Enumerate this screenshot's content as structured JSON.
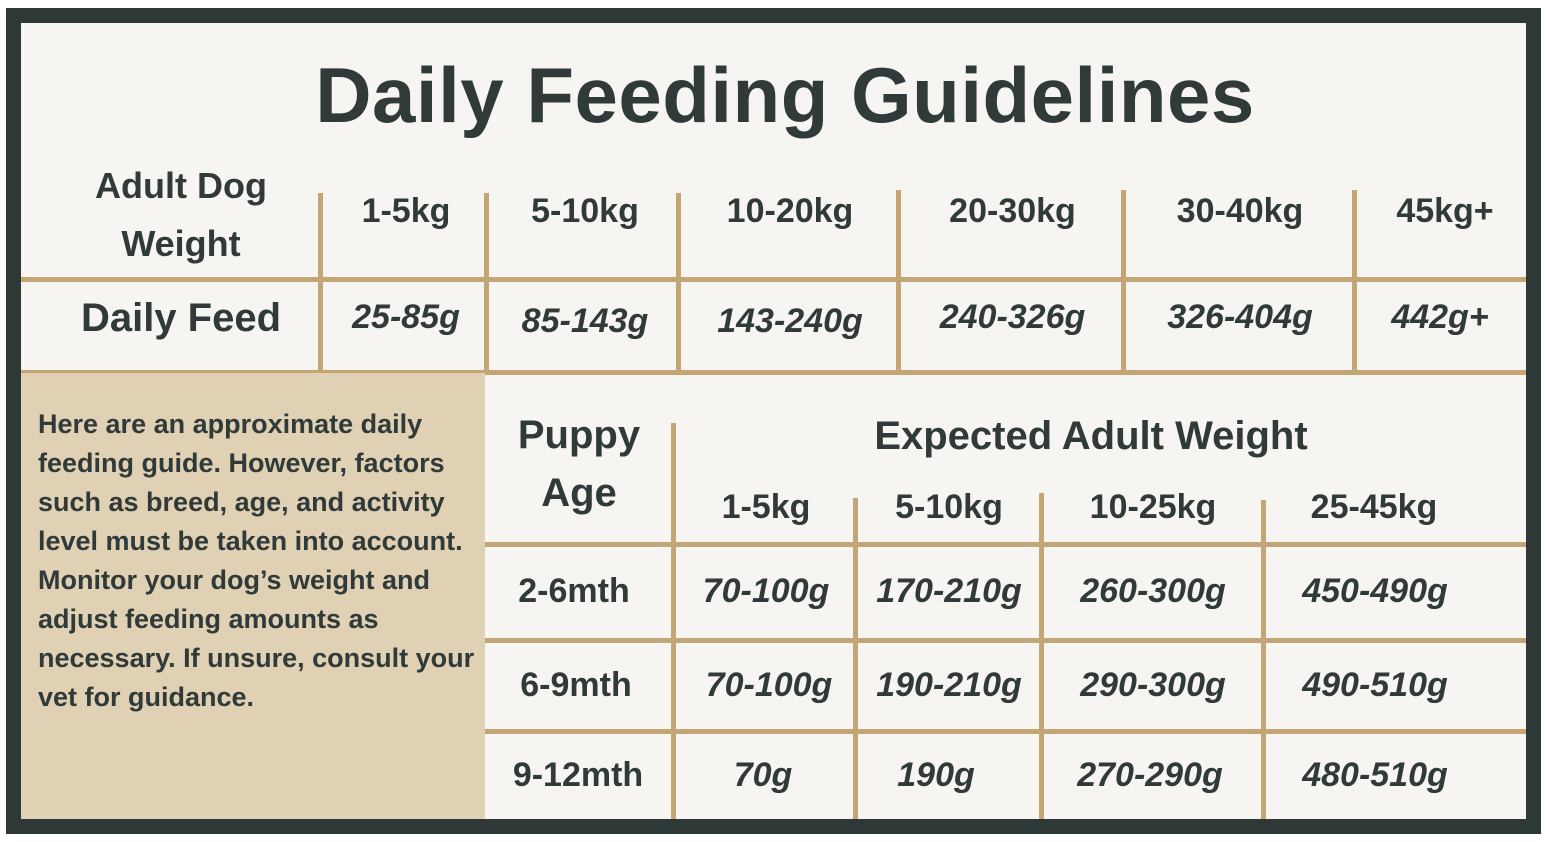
{
  "title": "Daily Feeding Guidelines",
  "adult": {
    "weight_label_line1": "Adult Dog",
    "weight_label_line2": "Weight",
    "feed_label": "Daily Feed",
    "weights": [
      "1-5kg",
      "5-10kg",
      "10-20kg",
      "20-30kg",
      "30-40kg",
      "45kg+"
    ],
    "feeds": [
      "25-85g",
      "85-143g",
      "143-240g",
      "240-326g",
      "326-404g",
      "442g+"
    ]
  },
  "note": "Here are an approximate daily feeding guide. However, factors such as breed, age, and activity level must be taken into account. Monitor your dog’s weight and adjust feeding amounts as necessary. If unsure, consult your vet for guidance.",
  "puppy": {
    "age_label_line1": "Puppy",
    "age_label_line2": "Age",
    "expected_label": "Expected Adult Weight",
    "weights": [
      "1-5kg",
      "5-10kg",
      "10-25kg",
      "25-45kg"
    ],
    "rows": [
      {
        "age": "2-6mth",
        "values": [
          "70-100g",
          "170-210g",
          "260-300g",
          "450-490g"
        ]
      },
      {
        "age": "6-9mth",
        "values": [
          "70-100g",
          "190-210g",
          "290-300g",
          "490-510g"
        ]
      },
      {
        "age": "9-12mth",
        "values": [
          "70g",
          "190g",
          "270-290g",
          "480-510g"
        ]
      }
    ]
  },
  "colors": {
    "frame": "#2e3837",
    "panel": "#f7f5f2",
    "gold": "#c4a676",
    "note_bg": "#e0d0b4",
    "text": "#2f3a39"
  }
}
